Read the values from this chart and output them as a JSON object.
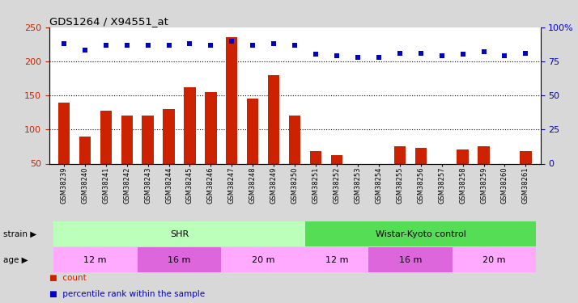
{
  "title": "GDS1264 / X94551_at",
  "samples": [
    "GSM38239",
    "GSM38240",
    "GSM38241",
    "GSM38242",
    "GSM38243",
    "GSM38244",
    "GSM38245",
    "GSM38246",
    "GSM38247",
    "GSM38248",
    "GSM38249",
    "GSM38250",
    "GSM38251",
    "GSM38252",
    "GSM38253",
    "GSM38254",
    "GSM38255",
    "GSM38256",
    "GSM38257",
    "GSM38258",
    "GSM38259",
    "GSM38260",
    "GSM38261"
  ],
  "counts": [
    140,
    90,
    128,
    121,
    120,
    130,
    162,
    155,
    235,
    145,
    180,
    121,
    68,
    63,
    50,
    50,
    75,
    73,
    50,
    71,
    76,
    50,
    68
  ],
  "percentiles": [
    88,
    83,
    87,
    87,
    87,
    87,
    88,
    87,
    90,
    87,
    88,
    87,
    80,
    79,
    78,
    78,
    81,
    81,
    79,
    80,
    82,
    79,
    81
  ],
  "bar_color": "#cc2200",
  "dot_color": "#0000cc",
  "bar_bottom": 50,
  "ylim_left": [
    50,
    250
  ],
  "ylim_right": [
    0,
    100
  ],
  "yticks_left": [
    50,
    100,
    150,
    200,
    250
  ],
  "yticks_right": [
    0,
    25,
    50,
    75,
    100
  ],
  "yticklabels_right": [
    "0",
    "25",
    "50",
    "75",
    "100%"
  ],
  "grid_values": [
    100,
    150,
    200
  ],
  "strain_groups": [
    {
      "label": "SHR",
      "start": 0,
      "end": 12,
      "color": "#bbffbb"
    },
    {
      "label": "Wistar-Kyoto control",
      "start": 12,
      "end": 23,
      "color": "#55dd55"
    }
  ],
  "age_groups": [
    {
      "label": "12 m",
      "start": 0,
      "end": 4,
      "color": "#ffaaff"
    },
    {
      "label": "16 m",
      "start": 4,
      "end": 8,
      "color": "#dd66dd"
    },
    {
      "label": "20 m",
      "start": 8,
      "end": 12,
      "color": "#ffaaff"
    },
    {
      "label": "12 m",
      "start": 12,
      "end": 15,
      "color": "#ffaaff"
    },
    {
      "label": "16 m",
      "start": 15,
      "end": 19,
      "color": "#dd66dd"
    },
    {
      "label": "20 m",
      "start": 19,
      "end": 23,
      "color": "#ffaaff"
    }
  ],
  "legend_count_label": "count",
  "legend_pct_label": "percentile rank within the sample",
  "strain_label": "strain",
  "age_label": "age",
  "bg_color": "#d8d8d8",
  "plot_bg": "#ffffff"
}
